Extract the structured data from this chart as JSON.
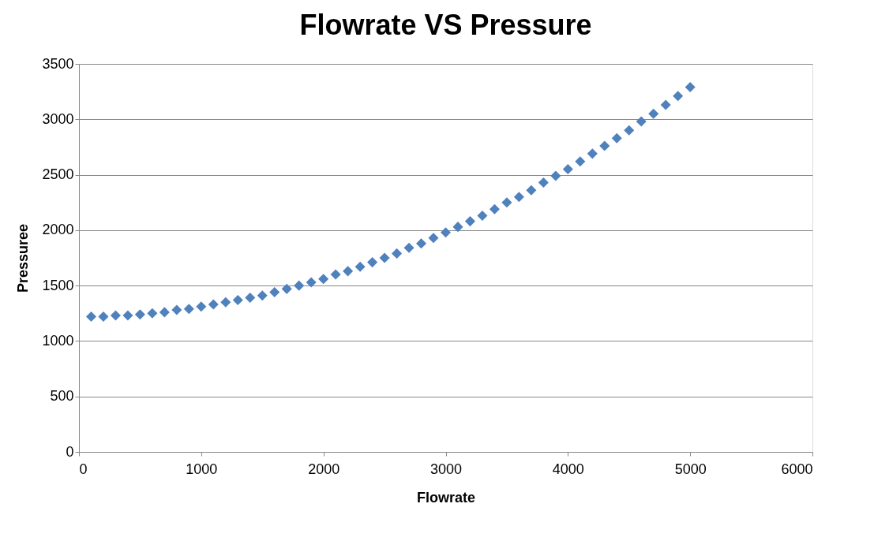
{
  "chart_data": {
    "type": "scatter",
    "title": "Flowrate VS Pressure",
    "xlabel": "Flowrate",
    "ylabel": "Pressuree",
    "x": [
      100,
      200,
      300,
      400,
      500,
      600,
      700,
      800,
      900,
      1000,
      1100,
      1200,
      1300,
      1400,
      1500,
      1600,
      1700,
      1800,
      1900,
      2000,
      2100,
      2200,
      2300,
      2400,
      2500,
      2600,
      2700,
      2800,
      2900,
      3000,
      3100,
      3200,
      3300,
      3400,
      3500,
      3600,
      3700,
      3800,
      3900,
      4000,
      4100,
      4200,
      4300,
      4400,
      4500,
      4600,
      4700,
      4800,
      4900,
      5000
    ],
    "series": [
      {
        "color": "#4f81bd",
        "values": [
          1220,
          1220,
          1230,
          1230,
          1240,
          1250,
          1260,
          1280,
          1290,
          1310,
          1330,
          1350,
          1370,
          1390,
          1410,
          1440,
          1470,
          1500,
          1530,
          1560,
          1600,
          1630,
          1670,
          1710,
          1750,
          1790,
          1840,
          1880,
          1930,
          1980,
          2030,
          2080,
          2130,
          2190,
          2250,
          2300,
          2360,
          2430,
          2490,
          2550,
          2620,
          2690,
          2760,
          2830,
          2900,
          2980,
          3050,
          3130,
          3210,
          3290
        ]
      }
    ],
    "xlim": [
      0,
      6000
    ],
    "xticks": [
      0,
      1000,
      2000,
      3000,
      4000,
      5000,
      6000
    ],
    "ylim": [
      0,
      3500
    ],
    "yticks": [
      0,
      500,
      1000,
      1500,
      2000,
      2500,
      3000,
      3500
    ],
    "grid": "y",
    "marker": "diamond"
  }
}
